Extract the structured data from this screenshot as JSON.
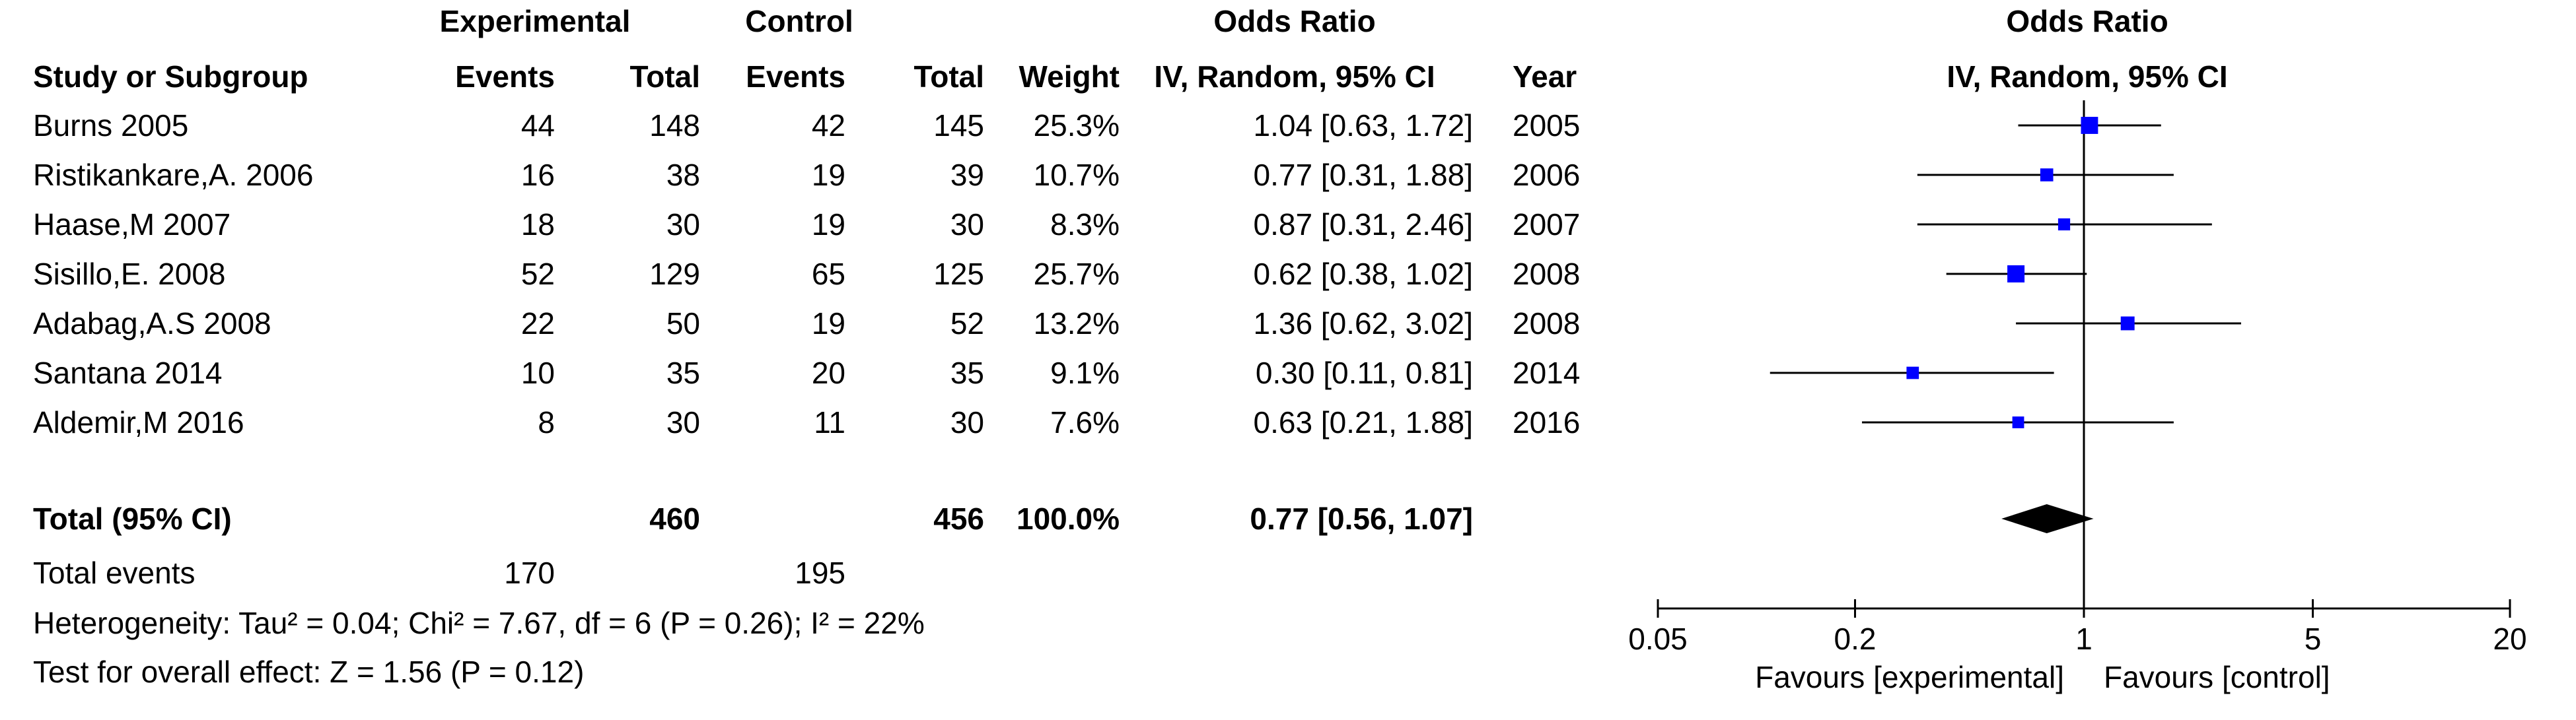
{
  "header": {
    "group_experimental": "Experimental",
    "group_control": "Control",
    "group_odds_ratio": "Odds Ratio",
    "col_study": "Study or Subgroup",
    "col_exp_events": "Events",
    "col_exp_total": "Total",
    "col_ctl_events": "Events",
    "col_ctl_total": "Total",
    "col_weight": "Weight",
    "col_ci": "IV, Random, 95% CI",
    "col_year": "Year",
    "plot_title": "Odds Ratio",
    "plot_subtitle": "IV, Random, 95% CI"
  },
  "studies": [
    {
      "name": "Burns 2005",
      "exp_events": "44",
      "exp_total": "148",
      "ctl_events": "42",
      "ctl_total": "145",
      "weight": "25.3%",
      "ci": "1.04 [0.63, 1.72]",
      "year": "2005"
    },
    {
      "name": "Ristikankare,A. 2006",
      "exp_events": "16",
      "exp_total": "38",
      "ctl_events": "19",
      "ctl_total": "39",
      "weight": "10.7%",
      "ci": "0.77 [0.31, 1.88]",
      "year": "2006"
    },
    {
      "name": "Haase,M 2007",
      "exp_events": "18",
      "exp_total": "30",
      "ctl_events": "19",
      "ctl_total": "30",
      "weight": "8.3%",
      "ci": "0.87 [0.31, 2.46]",
      "year": "2007"
    },
    {
      "name": "Sisillo,E. 2008",
      "exp_events": "52",
      "exp_total": "129",
      "ctl_events": "65",
      "ctl_total": "125",
      "weight": "25.7%",
      "ci": "0.62 [0.38, 1.02]",
      "year": "2008"
    },
    {
      "name": "Adabag,A.S 2008",
      "exp_events": "22",
      "exp_total": "50",
      "ctl_events": "19",
      "ctl_total": "52",
      "weight": "13.2%",
      "ci": "1.36 [0.62, 3.02]",
      "year": "2008"
    },
    {
      "name": "Santana 2014",
      "exp_events": "10",
      "exp_total": "35",
      "ctl_events": "20",
      "ctl_total": "35",
      "weight": "9.1%",
      "ci": "0.30 [0.11, 0.81]",
      "year": "2014"
    },
    {
      "name": "Aldemir,M 2016",
      "exp_events": "8",
      "exp_total": "30",
      "ctl_events": "11",
      "ctl_total": "30",
      "weight": "7.6%",
      "ci": "0.63 [0.21, 1.88]",
      "year": "2016"
    }
  ],
  "total": {
    "label": "Total (95% CI)",
    "exp_total": "460",
    "ctl_total": "456",
    "weight": "100.0%",
    "ci": "0.77 [0.56, 1.07]"
  },
  "total_events": {
    "label": "Total events",
    "exp": "170",
    "ctl": "195"
  },
  "heterogeneity": "Heterogeneity: Tau² = 0.04; Chi² = 7.67, df = 6 (P = 0.26); I² = 22%",
  "overall_effect": "Test for overall effect: Z = 1.56 (P = 0.12)",
  "colors": {
    "marker": "#0000ff",
    "diamond": "#000000",
    "line": "#000000"
  },
  "chart_data": {
    "type": "forest",
    "x_scale": "log",
    "xlim": [
      0.05,
      20
    ],
    "reference_line": 1,
    "x_ticks": [
      0.05,
      0.2,
      1,
      5,
      20
    ],
    "x_tick_labels": [
      "0.05",
      "0.2",
      "1",
      "5",
      "20"
    ],
    "xlabel_left": "Favours [experimental]",
    "xlabel_right": "Favours [control]",
    "studies": [
      {
        "label": "Burns 2005",
        "or": 1.04,
        "lo": 0.63,
        "hi": 1.72,
        "weight": 25.3
      },
      {
        "label": "Ristikankare,A. 2006",
        "or": 0.77,
        "lo": 0.31,
        "hi": 1.88,
        "weight": 10.7
      },
      {
        "label": "Haase,M 2007",
        "or": 0.87,
        "lo": 0.31,
        "hi": 2.46,
        "weight": 8.3
      },
      {
        "label": "Sisillo,E. 2008",
        "or": 0.62,
        "lo": 0.38,
        "hi": 1.02,
        "weight": 25.7
      },
      {
        "label": "Adabag,A.S 2008",
        "or": 1.36,
        "lo": 0.62,
        "hi": 3.02,
        "weight": 13.2
      },
      {
        "label": "Santana 2014",
        "or": 0.3,
        "lo": 0.11,
        "hi": 0.81,
        "weight": 9.1
      },
      {
        "label": "Aldemir,M 2016",
        "or": 0.63,
        "lo": 0.21,
        "hi": 1.88,
        "weight": 7.6
      }
    ],
    "pooled": {
      "label": "Total (95% CI)",
      "or": 0.77,
      "lo": 0.56,
      "hi": 1.07
    }
  }
}
